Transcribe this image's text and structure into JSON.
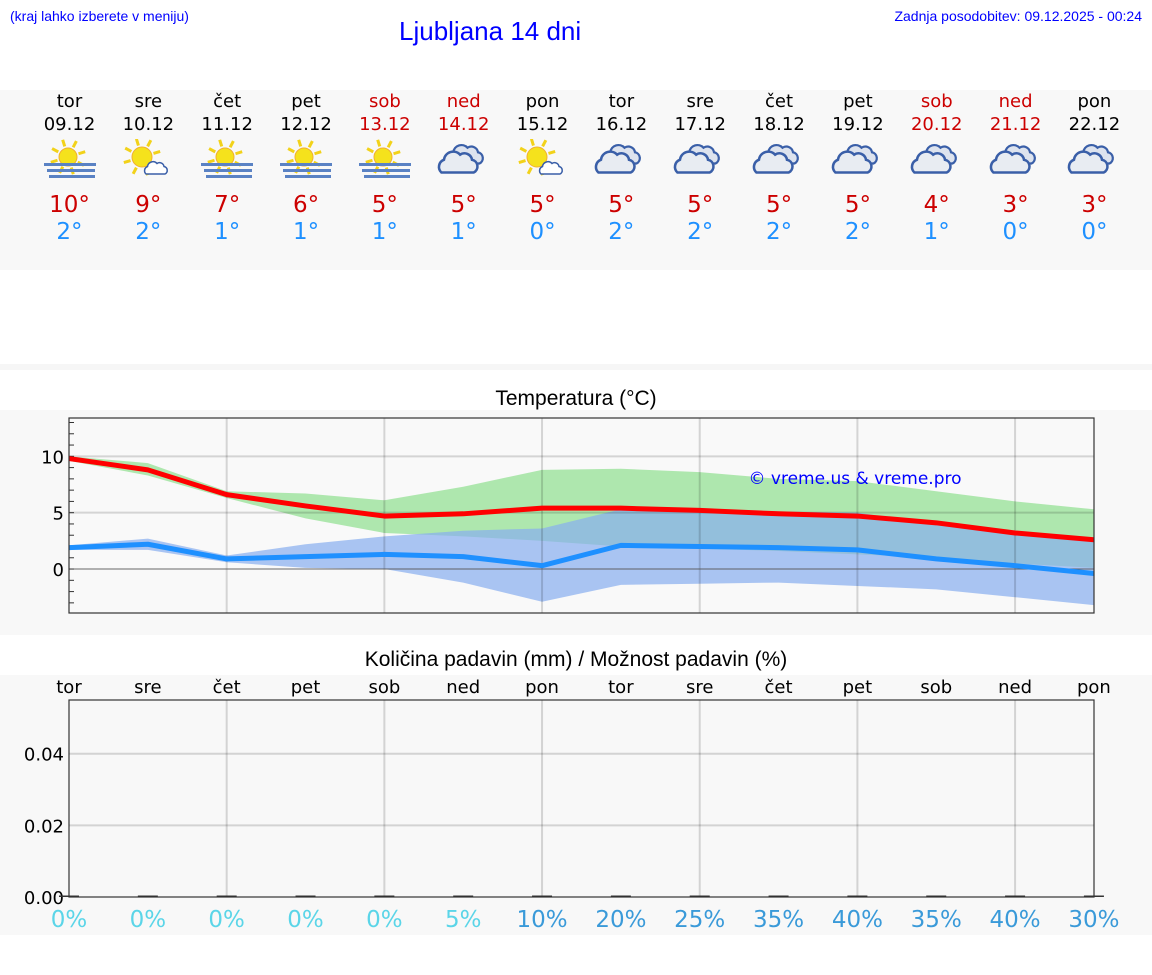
{
  "header": {
    "hint": "(kraj lahko izberete v meniju)",
    "title": "Ljubljana 14 dni",
    "updated": "Zadnja posodobitev: 09.12.2025 - 00:24"
  },
  "days": [
    {
      "name": "tor",
      "date": "09.12",
      "icon": "sun-fog-icon",
      "max": "10°",
      "min": "2°",
      "weekend": false,
      "precip": "0%"
    },
    {
      "name": "sre",
      "date": "10.12",
      "icon": "sun-cloud-icon",
      "max": "9°",
      "min": "2°",
      "weekend": false,
      "precip": "0%"
    },
    {
      "name": "čet",
      "date": "11.12",
      "icon": "sun-fog-icon",
      "max": "7°",
      "min": "1°",
      "weekend": false,
      "precip": "0%"
    },
    {
      "name": "pet",
      "date": "12.12",
      "icon": "sun-fog-icon",
      "max": "6°",
      "min": "1°",
      "weekend": false,
      "precip": "0%"
    },
    {
      "name": "sob",
      "date": "13.12",
      "icon": "sun-fog-icon",
      "max": "5°",
      "min": "1°",
      "weekend": true,
      "precip": "0%"
    },
    {
      "name": "ned",
      "date": "14.12",
      "icon": "cloudy-icon",
      "max": "5°",
      "min": "1°",
      "weekend": true,
      "precip": "5%"
    },
    {
      "name": "pon",
      "date": "15.12",
      "icon": "sun-cloud-icon",
      "max": "5°",
      "min": "0°",
      "weekend": false,
      "precip": "10%"
    },
    {
      "name": "tor",
      "date": "16.12",
      "icon": "cloudy-icon",
      "max": "5°",
      "min": "2°",
      "weekend": false,
      "precip": "20%"
    },
    {
      "name": "sre",
      "date": "17.12",
      "icon": "cloudy-icon",
      "max": "5°",
      "min": "2°",
      "weekend": false,
      "precip": "25%"
    },
    {
      "name": "čet",
      "date": "18.12",
      "icon": "cloudy-icon",
      "max": "5°",
      "min": "2°",
      "weekend": false,
      "precip": "35%"
    },
    {
      "name": "pet",
      "date": "19.12",
      "icon": "cloudy-icon",
      "max": "5°",
      "min": "2°",
      "weekend": false,
      "precip": "40%"
    },
    {
      "name": "sob",
      "date": "20.12",
      "icon": "cloudy-icon",
      "max": "4°",
      "min": "1°",
      "weekend": true,
      "precip": "35%"
    },
    {
      "name": "ned",
      "date": "21.12",
      "icon": "cloudy-icon",
      "max": "3°",
      "min": "0°",
      "weekend": true,
      "precip": "40%"
    },
    {
      "name": "pon",
      "date": "22.12",
      "icon": "cloudy-icon",
      "max": "3°",
      "min": "0°",
      "weekend": false,
      "precip": "30%"
    }
  ],
  "colors": {
    "max": "#cc0000",
    "min": "#1e90ff",
    "weekend": "#cc0000",
    "precip_low": "#5bd5e8",
    "precip_high": "#3a9ad9"
  },
  "chart_data": [
    {
      "type": "line",
      "title": "Temperatura (°C)",
      "watermark": "© vreme.us & vreme.pro",
      "ylim": [
        -3.9,
        13.4
      ],
      "yticks": [
        0,
        5,
        10
      ],
      "grid": true,
      "x": [
        "09.12",
        "10.12",
        "11.12",
        "12.12",
        "13.12",
        "14.12",
        "15.12",
        "16.12",
        "17.12",
        "18.12",
        "19.12",
        "20.12",
        "21.12",
        "22.12"
      ],
      "series": [
        {
          "kind": "line",
          "color": "#ff0000",
          "values": [
            9.8,
            8.8,
            6.6,
            5.6,
            4.7,
            4.9,
            5.4,
            5.4,
            5.2,
            4.9,
            4.7,
            4.1,
            3.2,
            2.6
          ]
        },
        {
          "kind": "line",
          "color": "#1e90ff",
          "values": [
            1.9,
            2.2,
            0.9,
            1.1,
            1.3,
            1.1,
            0.3,
            2.1,
            2.0,
            1.9,
            1.7,
            0.9,
            0.3,
            -0.4
          ]
        },
        {
          "kind": "band",
          "color": "#8fdf8f",
          "upper": [
            10.0,
            9.4,
            6.9,
            6.7,
            6.1,
            7.3,
            8.8,
            8.9,
            8.6,
            8.0,
            7.8,
            6.9,
            6.0,
            5.3
          ],
          "lower": [
            9.6,
            8.3,
            6.3,
            4.5,
            3.2,
            2.9,
            2.5,
            2.0,
            1.8,
            1.6,
            1.3,
            1.0,
            0.5,
            0.1
          ]
        },
        {
          "kind": "band",
          "color": "#87aef0",
          "upper": [
            2.1,
            2.7,
            1.2,
            2.2,
            2.9,
            3.4,
            3.6,
            5.3,
            5.3,
            5.1,
            5.0,
            4.0,
            3.2,
            2.8
          ],
          "lower": [
            1.7,
            1.7,
            0.6,
            0.1,
            0.0,
            -1.2,
            -2.9,
            -1.4,
            -1.3,
            -1.2,
            -1.5,
            -1.8,
            -2.5,
            -3.2
          ]
        }
      ]
    },
    {
      "type": "bar",
      "title": "Količina padavin (mm) / Možnost padavin (%)",
      "ylim": [
        0,
        0.055
      ],
      "yticks": [
        "0.00",
        "0.02",
        "0.04"
      ],
      "grid": true,
      "categories": [
        "tor",
        "sre",
        "čet",
        "pet",
        "sob",
        "ned",
        "pon",
        "tor",
        "sre",
        "čet",
        "pet",
        "sob",
        "ned",
        "pon"
      ],
      "values": [
        0,
        0,
        0,
        0,
        0,
        0,
        0,
        0,
        0,
        0,
        0,
        0,
        0,
        0
      ],
      "probability": [
        "0%",
        "0%",
        "0%",
        "0%",
        "0%",
        "5%",
        "10%",
        "20%",
        "25%",
        "35%",
        "40%",
        "35%",
        "40%",
        "30%"
      ]
    }
  ]
}
